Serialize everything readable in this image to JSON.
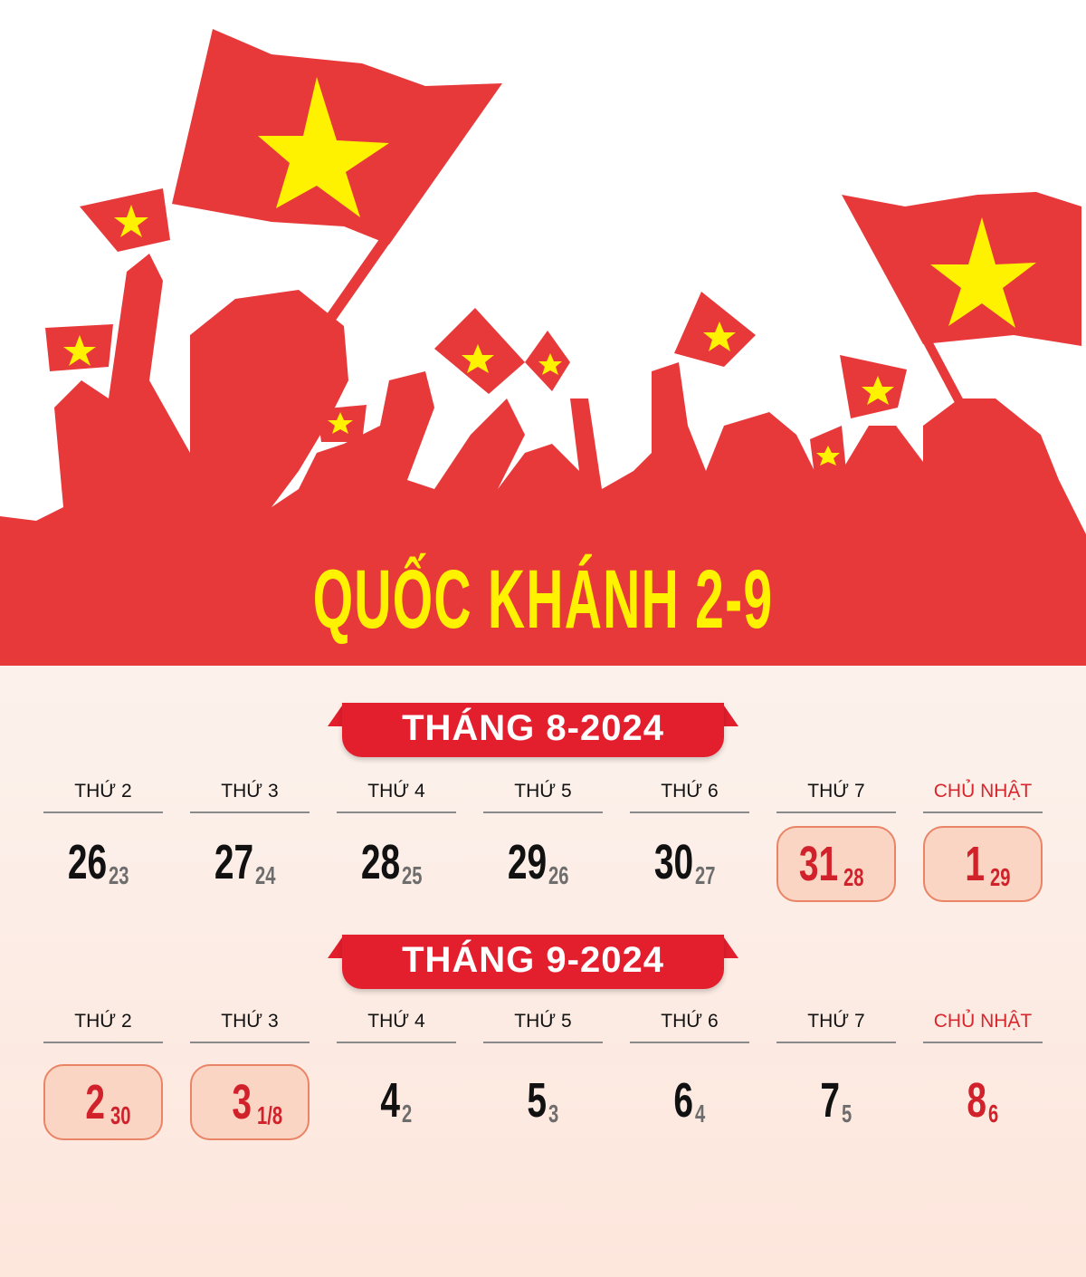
{
  "title": "QUỐC KHÁNH 2-9",
  "colors": {
    "red": "#e8393a",
    "banner": "#e31e2d",
    "yellow": "#fff200",
    "highlight": "#fbd5c4"
  },
  "weekdays": [
    "THỨ 2",
    "THỨ 3",
    "THỨ 4",
    "THỨ 5",
    "THỨ 6",
    "THỨ 7",
    "CHỦ NHẬT"
  ],
  "months": [
    {
      "title": "THÁNG 8-2024",
      "days": [
        {
          "solar": "26",
          "lunar": "23",
          "highlight": false
        },
        {
          "solar": "27",
          "lunar": "24",
          "highlight": false
        },
        {
          "solar": "28",
          "lunar": "25",
          "highlight": false
        },
        {
          "solar": "29",
          "lunar": "26",
          "highlight": false
        },
        {
          "solar": "30",
          "lunar": "27",
          "highlight": false
        },
        {
          "solar": "31",
          "lunar": "28",
          "highlight": true
        },
        {
          "solar": "1",
          "lunar": "29",
          "highlight": true
        }
      ]
    },
    {
      "title": "THÁNG 9-2024",
      "days": [
        {
          "solar": "2",
          "lunar": "30",
          "highlight": true
        },
        {
          "solar": "3",
          "lunar": "1/8",
          "highlight": true
        },
        {
          "solar": "4",
          "lunar": "2",
          "highlight": false
        },
        {
          "solar": "5",
          "lunar": "3",
          "highlight": false
        },
        {
          "solar": "6",
          "lunar": "4",
          "highlight": false
        },
        {
          "solar": "7",
          "lunar": "5",
          "highlight": false
        },
        {
          "solar": "8",
          "lunar": "6",
          "highlight": false
        }
      ]
    }
  ]
}
